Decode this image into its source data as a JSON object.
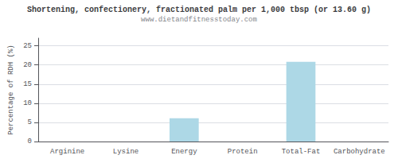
{
  "chart_data": {
    "type": "bar",
    "title": "Shortening, confectionery, fractionated palm per 1,000 tbsp (or 13.60 g)",
    "subtitle": "www.dietandfitnesstoday.com",
    "categories": [
      "Arginine",
      "Lysine",
      "Energy",
      "Protein",
      "Total-Fat",
      "Carbohydrate"
    ],
    "values": [
      0,
      0,
      6.1,
      0,
      20.8,
      0
    ],
    "color": "#add8e6",
    "ylabel": "Percentage of RDH (%)",
    "ylim": [
      0,
      27
    ],
    "yticks": [
      0,
      5,
      10,
      15,
      20,
      25
    ],
    "grid": true
  }
}
